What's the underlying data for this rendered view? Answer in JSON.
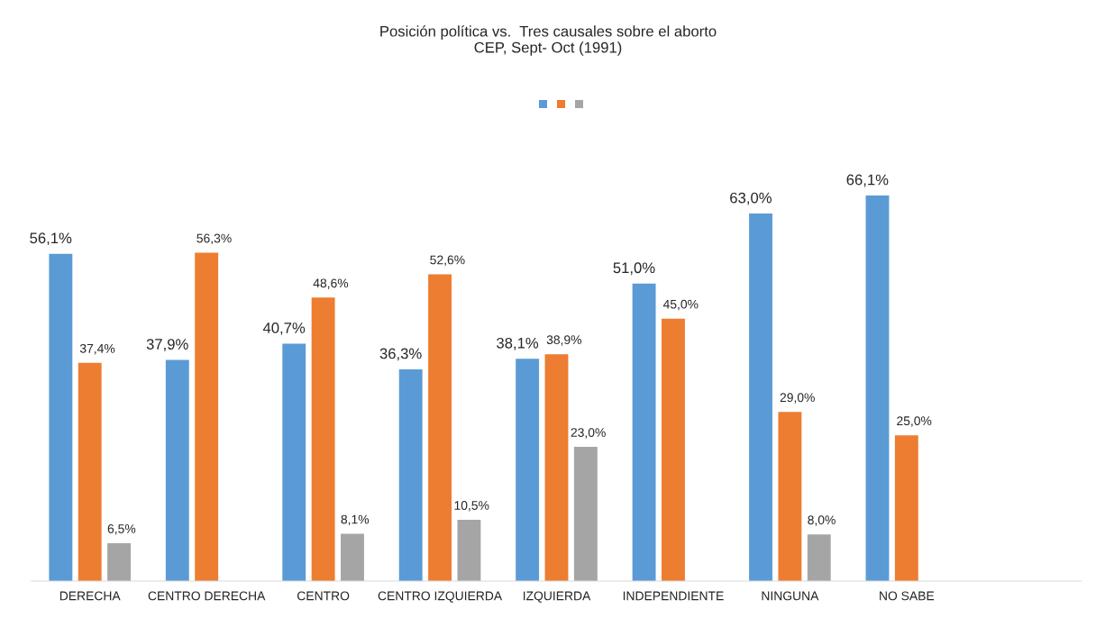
{
  "chart_data": {
    "type": "bar",
    "title": "Posición política vs.  Tres causales sobre el aborto\nCEP, Sept- Oct (1991)",
    "categories": [
      "DERECHA",
      "CENTRO DERECHA",
      "CENTRO",
      "CENTRO IZQUIERDA",
      "IZQUIERDA",
      "INDEPENDIENTE",
      "NINGUNA",
      "NO SABE",
      null
    ],
    "series": [
      {
        "color": "#5b9bd5",
        "values": [
          56.1,
          37.9,
          40.7,
          36.3,
          38.1,
          51.0,
          63.0,
          66.1,
          null
        ],
        "value_labels": [
          "56,1%",
          "37,9%",
          "40,7%",
          "36,3%",
          "38,1%",
          "51,0%",
          "63,0%",
          "66,1%",
          null
        ]
      },
      {
        "color": "#ed7d31",
        "values": [
          37.4,
          56.3,
          48.6,
          52.6,
          38.9,
          45.0,
          29.0,
          25.0,
          null
        ],
        "value_labels": [
          "37,4%",
          "56,3%",
          "48,6%",
          "52,6%",
          "38,9%",
          "45,0%",
          "29,0%",
          "25,0%",
          null
        ]
      },
      {
        "color": "#a5a5a5",
        "values": [
          6.5,
          null,
          8.1,
          10.5,
          23.0,
          null,
          8.0,
          null,
          null
        ],
        "value_labels": [
          "6,5%",
          null,
          "8,1%",
          "10,5%",
          "23,0%",
          null,
          "8,0%",
          null,
          null
        ]
      }
    ],
    "grid": false
  }
}
